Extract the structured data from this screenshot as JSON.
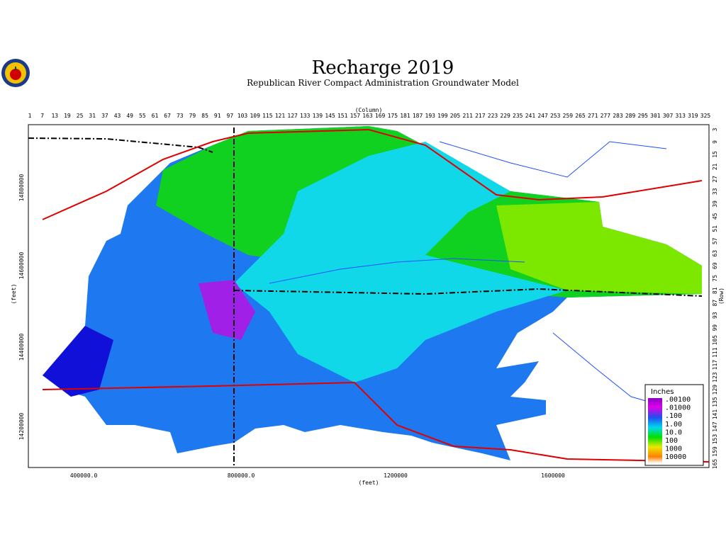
{
  "header": {
    "title": "Recharge 2019",
    "subtitle": "Republican River Compact Administration Groundwater Model"
  },
  "top_axis": {
    "label": "(Column)",
    "ticks": [
      1,
      7,
      13,
      19,
      25,
      31,
      37,
      43,
      49,
      55,
      61,
      67,
      73,
      79,
      85,
      91,
      97,
      103,
      109,
      115,
      121,
      127,
      133,
      139,
      145,
      151,
      157,
      163,
      169,
      175,
      181,
      187,
      193,
      199,
      205,
      211,
      217,
      223,
      229,
      235,
      241,
      247,
      253,
      259,
      265,
      271,
      277,
      283,
      289,
      295,
      301,
      307,
      313,
      319,
      325
    ]
  },
  "right_axis": {
    "label": "(Row)",
    "ticks": [
      3,
      9,
      15,
      21,
      27,
      33,
      39,
      45,
      51,
      57,
      63,
      69,
      75,
      81,
      87,
      93,
      99,
      105,
      111,
      117,
      123,
      129,
      135,
      141,
      147,
      153,
      159,
      165
    ]
  },
  "bottom_axis": {
    "label": "(feet)",
    "ticks": [
      "400000.0",
      "800000.0",
      "1200000",
      "1600000"
    ]
  },
  "left_axis": {
    "label": "(feet)",
    "ticks": [
      "14800000",
      "14600000",
      "14400000",
      "14200000"
    ]
  },
  "legend": {
    "title": "Inches",
    "labels": [
      ".00100",
      ".01000",
      ".100",
      "1.00",
      "10.0",
      "100",
      "1000",
      "10000"
    ]
  }
}
